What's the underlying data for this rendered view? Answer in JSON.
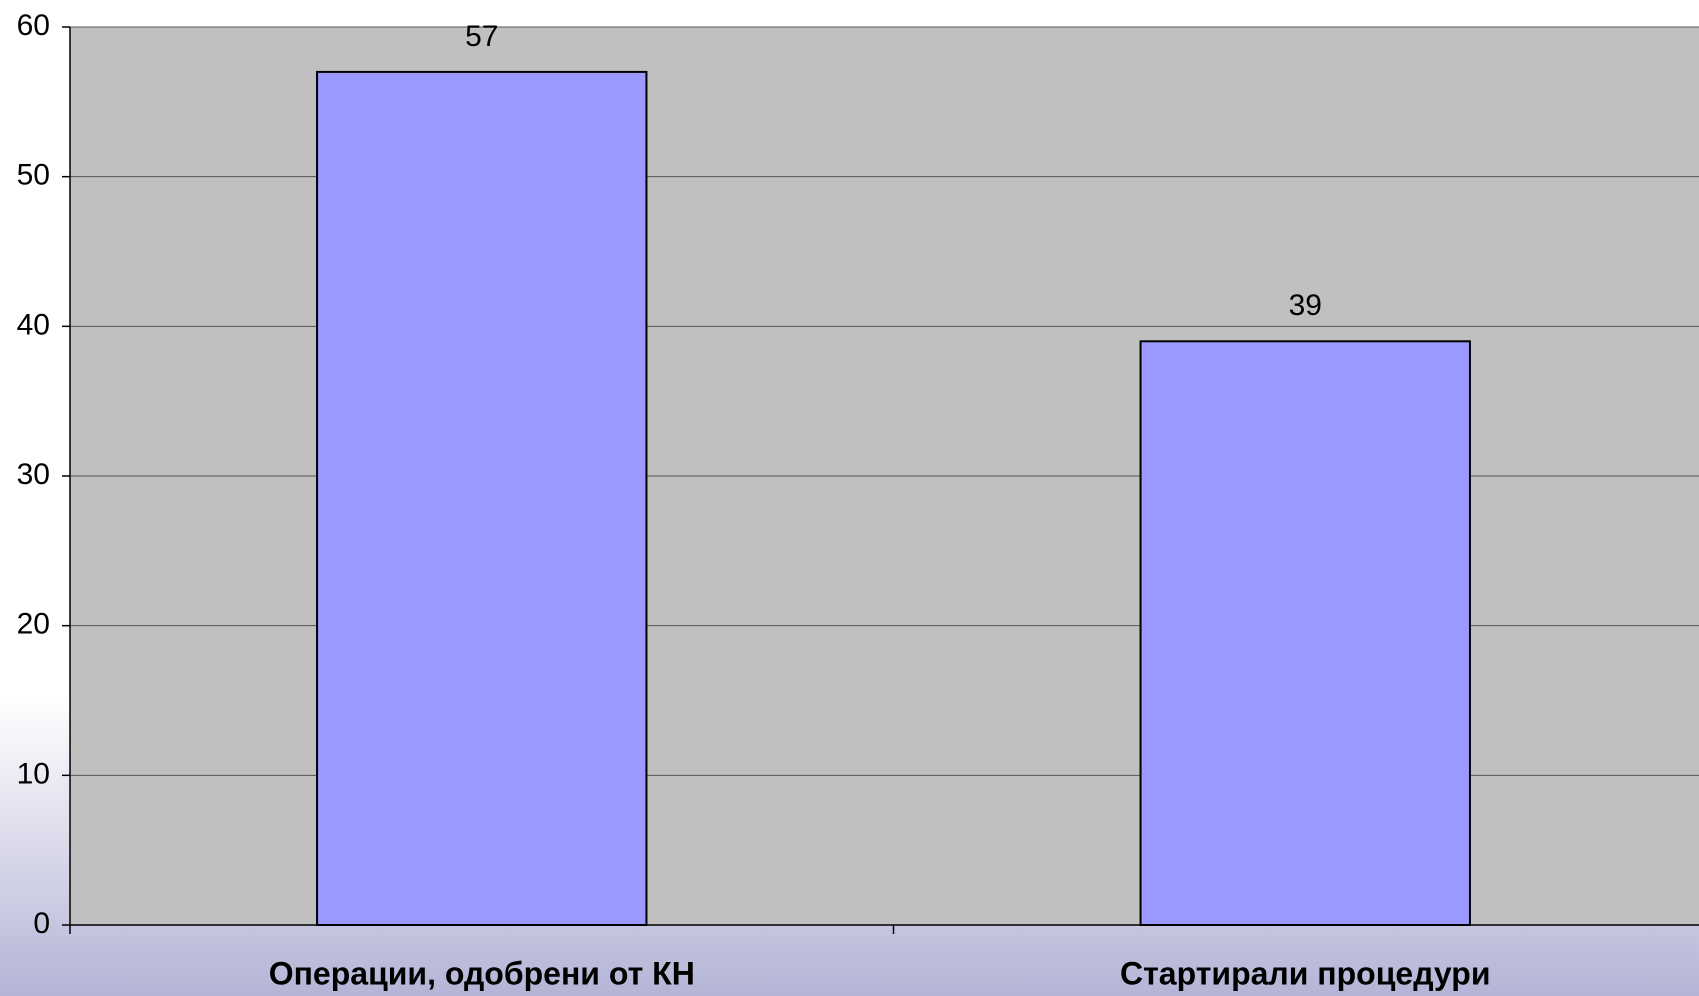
{
  "chart_data": {
    "type": "bar",
    "categories": [
      "Операции, одобрени от КН",
      "Стартирали процедури"
    ],
    "values": [
      57,
      39
    ],
    "color": "#9999ff",
    "ylim": [
      0,
      60
    ],
    "yticks": [
      0,
      10,
      20,
      30,
      40,
      50,
      60
    ],
    "grid": true
  }
}
